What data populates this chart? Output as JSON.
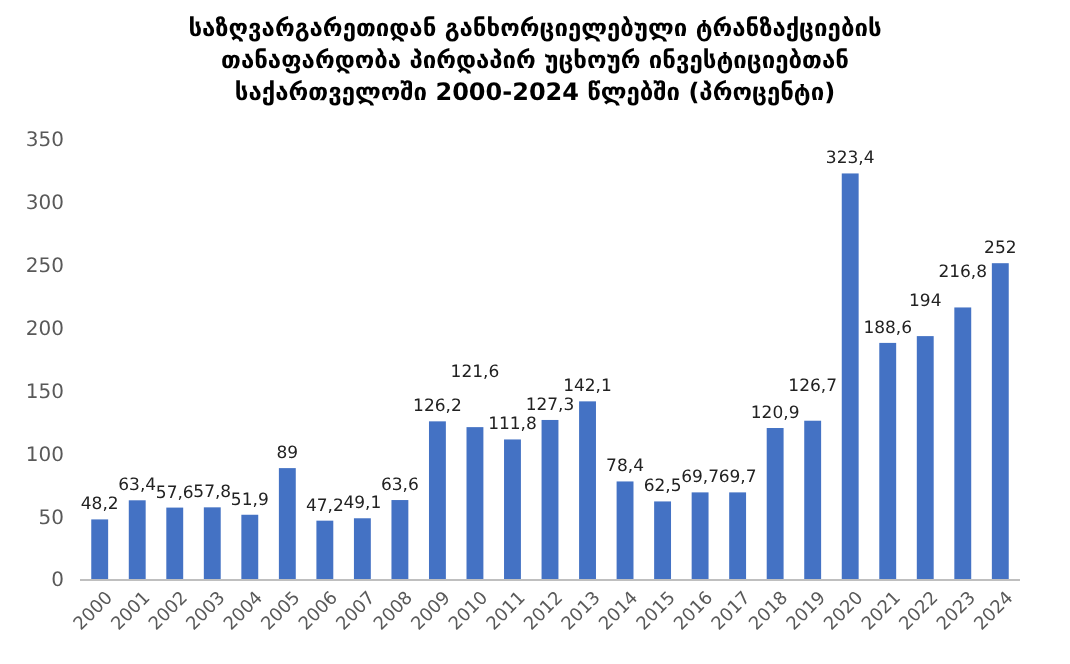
{
  "chart_data": {
    "type": "bar",
    "title": "საზღვარგარეთიდან განხორციელებული ტრანზაქციების თანაფარდობა პირდაპირ უცხოურ ინვესტიციებთან საქართველოში 2000-2024 წლებში (პროცენტი)",
    "categories": [
      "2000",
      "2001",
      "2002",
      "2003",
      "2004",
      "2005",
      "2006",
      "2007",
      "2008",
      "2009",
      "2010",
      "2011",
      "2012",
      "2013",
      "2014",
      "2015",
      "2016",
      "2017",
      "2018",
      "2019",
      "2020",
      "2021",
      "2022",
      "2023",
      "2024"
    ],
    "values": [
      48.2,
      63.4,
      57.6,
      57.8,
      51.9,
      89,
      47.2,
      49.1,
      63.6,
      126.2,
      121.6,
      111.8,
      127.3,
      142.1,
      78.4,
      62.5,
      69.7,
      69.7,
      120.9,
      126.7,
      323.4,
      188.6,
      194,
      216.8,
      252
    ],
    "value_labels": [
      "48,2",
      "63,4",
      "57,6",
      "57,8",
      "51,9",
      "89",
      "47,2",
      "49,1",
      "63,6",
      "126,2",
      "121,6",
      "111,8",
      "127,3",
      "142,1",
      "78,4",
      "62,5",
      "69,7",
      "69,7",
      "120,9",
      "126,7",
      "323,4",
      "188,6",
      "194",
      "216,8",
      "252"
    ],
    "color": "#4472c4",
    "ylim": [
      0,
      350
    ],
    "yticks": [
      0,
      50,
      100,
      150,
      200,
      250,
      300,
      350
    ],
    "grid": false
  }
}
